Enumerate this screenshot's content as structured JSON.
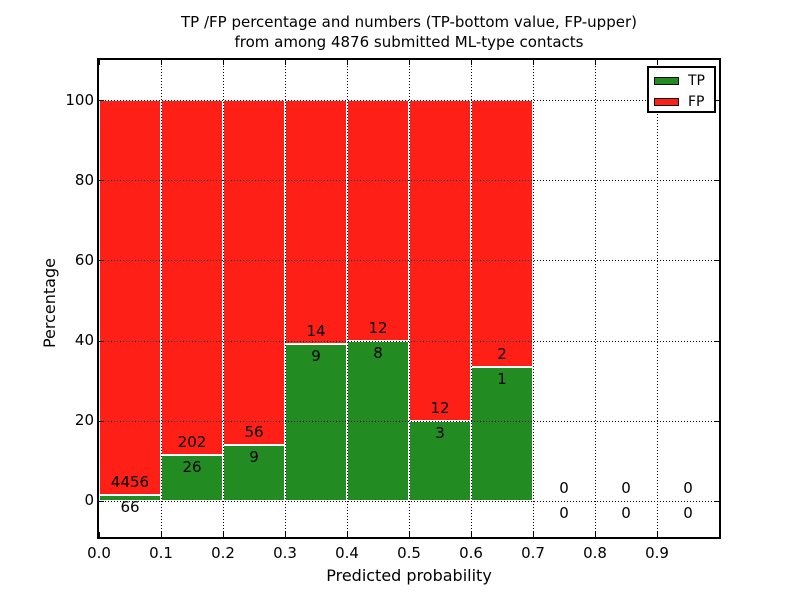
{
  "figure": {
    "background": "#ffffff"
  },
  "chart_data": {
    "type": "bar",
    "stacked": true,
    "orientation": "vertical",
    "title_line1": "TP /FP percentage and numbers (TP-bottom value, FP-upper)",
    "title_line2": "from among 4876 submitted ML-type contacts",
    "xlabel": "Predicted probability",
    "ylabel": "Percentage",
    "xlim": [
      0.0,
      1.0
    ],
    "ylim": [
      -9,
      110
    ],
    "x_ticks": [
      0.0,
      0.1,
      0.2,
      0.3,
      0.4,
      0.5,
      0.6,
      0.7,
      0.8,
      0.9
    ],
    "x_tick_labels": [
      "0.0",
      "0.1",
      "0.2",
      "0.3",
      "0.4",
      "0.5",
      "0.6",
      "0.7",
      "0.8",
      "0.9"
    ],
    "y_ticks": [
      0,
      20,
      40,
      60,
      80,
      100
    ],
    "y_tick_labels": [
      "0",
      "20",
      "40",
      "60",
      "80",
      "100"
    ],
    "grid": true,
    "grid_style": "dotted",
    "annotation_note": "FP count printed above green/red boundary, TP count below it",
    "total_contacts": 4876,
    "colors": {
      "tp": "#228b22",
      "fp": "#fe2016",
      "bar_edge": "#ffffff"
    },
    "legend": {
      "position": "upper right",
      "entries": [
        {
          "label": "TP",
          "color": "#228b22"
        },
        {
          "label": "FP",
          "color": "#fe2016"
        }
      ]
    },
    "bins": [
      {
        "range": [
          0.0,
          0.1
        ],
        "tp": 66,
        "fp": 4456
      },
      {
        "range": [
          0.1,
          0.2
        ],
        "tp": 26,
        "fp": 202
      },
      {
        "range": [
          0.2,
          0.3
        ],
        "tp": 9,
        "fp": 56
      },
      {
        "range": [
          0.3,
          0.4
        ],
        "tp": 9,
        "fp": 14
      },
      {
        "range": [
          0.4,
          0.5
        ],
        "tp": 8,
        "fp": 12
      },
      {
        "range": [
          0.5,
          0.6
        ],
        "tp": 3,
        "fp": 12
      },
      {
        "range": [
          0.6,
          0.7
        ],
        "tp": 1,
        "fp": 2
      },
      {
        "range": [
          0.7,
          0.8
        ],
        "tp": 0,
        "fp": 0
      },
      {
        "range": [
          0.8,
          0.9
        ],
        "tp": 0,
        "fp": 0
      },
      {
        "range": [
          0.9,
          1.0
        ],
        "tp": 0,
        "fp": 0
      }
    ]
  }
}
